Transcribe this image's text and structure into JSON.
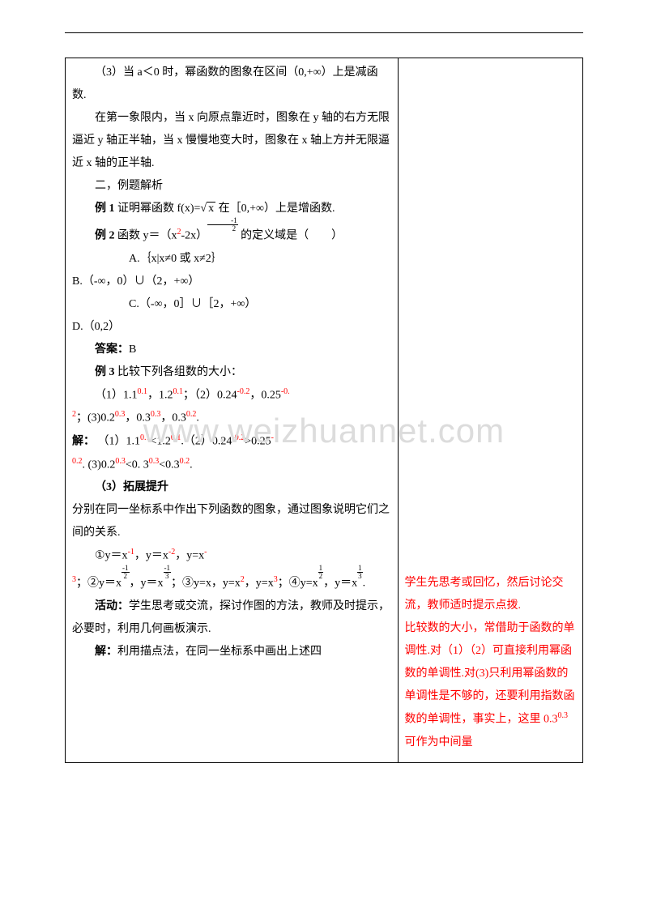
{
  "watermark": "www.weizhuannet.com",
  "left": {
    "p1": "（3）当 a＜0 时，幂函数的图象在区间（0,+∞）上是减函数.",
    "p2": "在第一象限内，当 x 向原点靠近时，图象在 y 轴的右方无限逼近 y 轴正半轴，当 x 慢慢地变大时，图象在 x 轴上方并无限逼近 x 轴的正半轴.",
    "p3": "二，例题解析",
    "ex1_label": "例 1",
    "ex1_text_a": " 证明幂函数 f(x)=",
    "ex1_sqrt": "x",
    "ex1_text_b": " 在［0,+∞）上是增函数.",
    "ex2_label": "例 2",
    "ex2_text_a": " 函数 y＝（x",
    "ex2_text_b": "-2x）",
    "ex2_text_c": " 的定义域是（　　）",
    "optA": "A.｛x|x≠0 或 x≠2｝",
    "optB": "B.（-∞，0）∪（2，+∞）",
    "optC": "C.（-∞，0］∪［2，+∞）",
    "optD": "D.（0,2）",
    "ans_label": "答案：",
    "ans_val": "B",
    "ex3_label": "例 3",
    "ex3_text": " 比较下列各组数的大小：",
    "ex3_1a": "（1）1.1",
    "ex3_1b": "，1.2",
    "ex3_1c": "；（2）0.24",
    "ex3_1d": "，0.25",
    "ex3_1e": "；(3)0.2",
    "ex3_1f": "，0.3",
    "ex3_1g": "，0.3",
    "ex3_1h": ".",
    "sol_label": "解：",
    "sol_a": "（1）1.1",
    "sol_b": "<1.2",
    "sol_c": ".（2）0.24",
    "sol_d": ">0.25",
    "sol_e": ". (3)0.2",
    "sol_f": "<0. 3",
    "sol_g": "<0.3",
    "sol_h": ".",
    "ext_label": "（3）拓展提升",
    "ext_p1": "分别在同一坐标系中作出下列函数的图象，通过图象说明它们之间的关系.",
    "ext_line1_a": "①y＝x",
    "ext_line1_b": "，y＝x",
    "ext_line1_c": "，y=x",
    "ext_line2_a": "；②y＝x",
    "ext_line2_b": "，y＝x",
    "ext_line2_c": "；③y=x，y=x",
    "ext_line2_d": "，y=x",
    "ext_line2_e": "；④y=x",
    "ext_line2_f": "，y＝x",
    "ext_line2_g": ".",
    "act_label": "活动：",
    "act_text": "学生思考或交流，探讨作图的方法，教师及时提示，必要时，利用几何画板演示.",
    "sol2_label": "解：",
    "sol2_text": "利用描点法，在同一坐标系中画出上述四"
  },
  "right": {
    "p1": "学生先思考或回忆，然后讨论交流，教师适时提示点拨.",
    "p2_a": "比较数的大小，常借助于函数的单调性.对（1）（2）可直接利用幂函数的单调性.对(3)只利用幂函数的单调性是不够的，还要利用指数函数的单调性，事实上，这里 0.3",
    "p2_exp": "0.3",
    "p2_b": "可作为中间量"
  },
  "exp": {
    "sq": "2",
    "cube": "3",
    "neg1": "-1",
    "neg2": "-2",
    "p01": "0.1",
    "neg02": "-0.2",
    "p03": "0.3",
    "p02": "0.2",
    "frac12_num": "1",
    "frac12_den": "2",
    "frac13_num": "1",
    "frac13_den": "3",
    "neg": "-",
    "neg3": "3"
  }
}
